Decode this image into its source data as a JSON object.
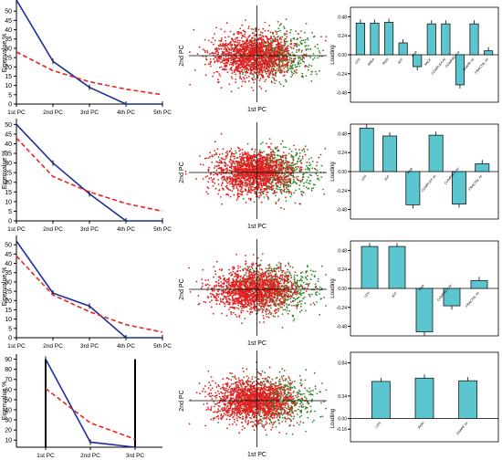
{
  "colors": {
    "pca_line": "#1f2f9a",
    "broken_stick": "#e8241c",
    "bar_fill": "#5bc6cf",
    "bar_stroke": "#1a1a1a",
    "scatter_red": "#e02020",
    "scatter_green": "#2a8a2a",
    "axis": "#000000"
  },
  "chart_data": [
    {
      "type": "line",
      "row": 1,
      "ylabel": "Eigenvalue %",
      "yticks": [
        0,
        5,
        10,
        15,
        20,
        25,
        30,
        35,
        40,
        45,
        50
      ],
      "ylim": [
        0,
        55
      ],
      "categories": [
        "1st PC",
        "2nd PC",
        "3rd PC",
        "4th PC",
        "5th PC"
      ],
      "series": [
        {
          "values": [
            56,
            23,
            9,
            0,
            0
          ],
          "style": "solid"
        },
        {
          "values": [
            28,
            18,
            12,
            8,
            5
          ],
          "style": "dashed"
        }
      ]
    },
    {
      "type": "scatter",
      "row": 1,
      "xlabel": "1st PC",
      "ylabel": "2nd PC"
    },
    {
      "type": "bar",
      "row": 1,
      "ylabel": "Loading",
      "yticks": [
        -0.48,
        -0.24,
        0,
        0.24,
        0.48
      ],
      "ylim": [
        -0.6,
        0.6
      ],
      "categories": [
        "LEN",
        "AREA",
        "PERI",
        "AVF",
        "PHA",
        "PACK",
        "COMPLEX int",
        "COMPACT int",
        "SHAPE int",
        "FRACTAL int"
      ],
      "values": [
        0.4,
        0.4,
        0.41,
        0.15,
        -0.15,
        0.39,
        0.39,
        -0.38,
        0.39,
        0.05
      ]
    },
    {
      "type": "line",
      "row": 2,
      "ylabel": "Eigenvalue %",
      "yticks": [
        0,
        5,
        10,
        15,
        20,
        25,
        30,
        35,
        40,
        45,
        50
      ],
      "ylim": [
        0,
        53
      ],
      "categories": [
        "1st PC",
        "2nd PC",
        "3rd PC",
        "4th PC",
        "5th PC"
      ],
      "series": [
        {
          "values": [
            50,
            30,
            14,
            0,
            0
          ],
          "style": "solid"
        },
        {
          "values": [
            43,
            23,
            15,
            9,
            5
          ],
          "style": "dashed"
        }
      ]
    },
    {
      "type": "scatter",
      "row": 2,
      "xlabel": "1st PC",
      "ylabel": "2nd PC"
    },
    {
      "type": "bar",
      "row": 2,
      "ylabel": "Loading",
      "yticks": [
        -0.48,
        -0.24,
        0,
        0.24,
        0.48
      ],
      "ylim": [
        -0.6,
        0.6
      ],
      "categories": [
        "LEN",
        "AVF",
        "PHA",
        "COMPLEX int",
        "COMPACT int",
        "FRACTAL int"
      ],
      "values": [
        0.55,
        0.45,
        -0.42,
        0.46,
        -0.41,
        0.1
      ]
    },
    {
      "type": "line",
      "row": 3,
      "ylabel": "Eigenvalue %",
      "yticks": [
        0,
        5,
        10,
        15,
        20,
        25,
        30,
        35,
        40,
        45,
        50
      ],
      "ylim": [
        0,
        55
      ],
      "categories": [
        "1st PC",
        "2nd PC",
        "3rd PC",
        "4th PC",
        "5th PC"
      ],
      "series": [
        {
          "values": [
            52,
            24,
            17,
            0,
            0
          ],
          "style": "solid"
        },
        {
          "values": [
            44,
            23,
            14,
            7,
            3
          ],
          "style": "dashed"
        }
      ]
    },
    {
      "type": "scatter",
      "row": 3,
      "xlabel": "1st PC",
      "ylabel": "2nd PC"
    },
    {
      "type": "bar",
      "row": 3,
      "ylabel": "Loading",
      "yticks": [
        -0.48,
        -0.24,
        0,
        0.24,
        0.48
      ],
      "ylim": [
        -0.6,
        0.6
      ],
      "categories": [
        "LEN",
        "AVF",
        "PHA",
        "COMPACT int",
        "FRACTAL int"
      ],
      "values": [
        0.53,
        0.53,
        -0.55,
        -0.22,
        0.1
      ]
    },
    {
      "type": "line",
      "row": 4,
      "ylabel": "Eigenvalue %",
      "yticks": [
        10,
        20,
        30,
        40,
        50,
        60,
        70,
        80,
        90
      ],
      "ylim": [
        3,
        95
      ],
      "categories": [
        "1st PC",
        "2nd PC",
        "3rd PC"
      ],
      "series": [
        {
          "values": [
            90,
            8,
            3
          ],
          "style": "solid"
        },
        {
          "values": [
            61,
            27,
            11
          ],
          "style": "dashed"
        }
      ]
    },
    {
      "type": "scatter",
      "row": 4,
      "xlabel": "1st PC",
      "ylabel": "2nd PC"
    },
    {
      "type": "bar",
      "row": 4,
      "ylabel": "Loading",
      "yticks": [
        -0.16,
        0,
        0.34,
        0.84
      ],
      "ylim": [
        -0.35,
        1.0
      ],
      "categories": [
        "LEN",
        "PERI",
        "SHAPE int"
      ],
      "values": [
        0.56,
        0.61,
        0.57
      ]
    }
  ]
}
